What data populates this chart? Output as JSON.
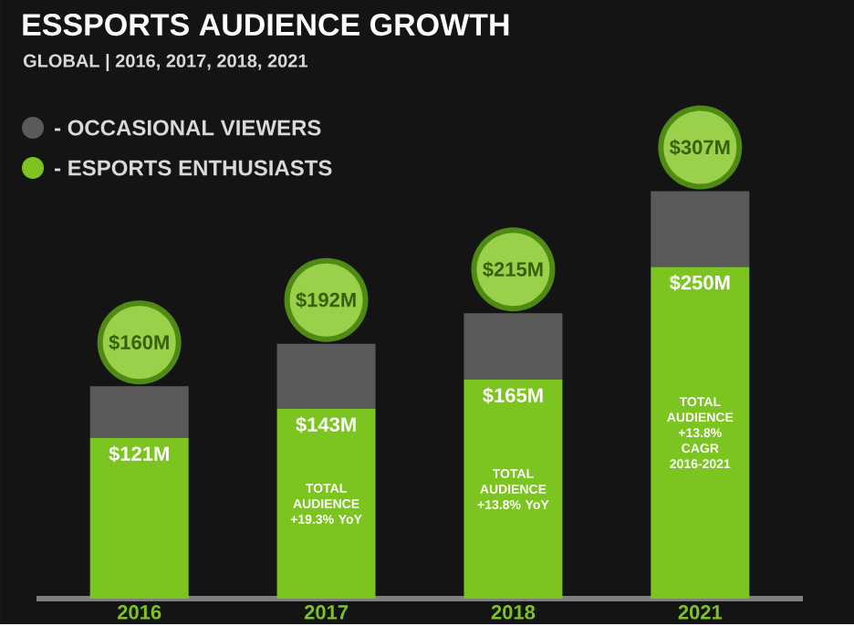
{
  "chart_data": {
    "type": "bar",
    "stacked": true,
    "title": "ESSPORTS AUDIENCE GROWTH",
    "subtitle": "GLOBAL | 2016, 2017, 2018, 2021",
    "categories": [
      "2016",
      "2017",
      "2018",
      "2021"
    ],
    "series": [
      {
        "name": "- ESPORTS ENTHUSIASTS",
        "color": "#7cc520",
        "values": [
          121,
          143,
          165,
          250
        ],
        "value_labels": [
          "$121M",
          "$143M",
          "$165M",
          "$250M"
        ]
      },
      {
        "name": "- OCCASIONAL VIEWERS",
        "color": "#5a5a5a",
        "values": [
          39,
          49,
          50,
          57
        ]
      }
    ],
    "totals": [
      "$160M",
      "$192M",
      "$215M",
      "$307M"
    ],
    "annotations": [
      "TOTAL AUDIENCE +19.3% YoY",
      "TOTAL AUDIENCE +13.8% YoY",
      "TOTAL AUDIENCE +13.8% CAGR 2016-2021"
    ],
    "legend": "top left"
  }
}
